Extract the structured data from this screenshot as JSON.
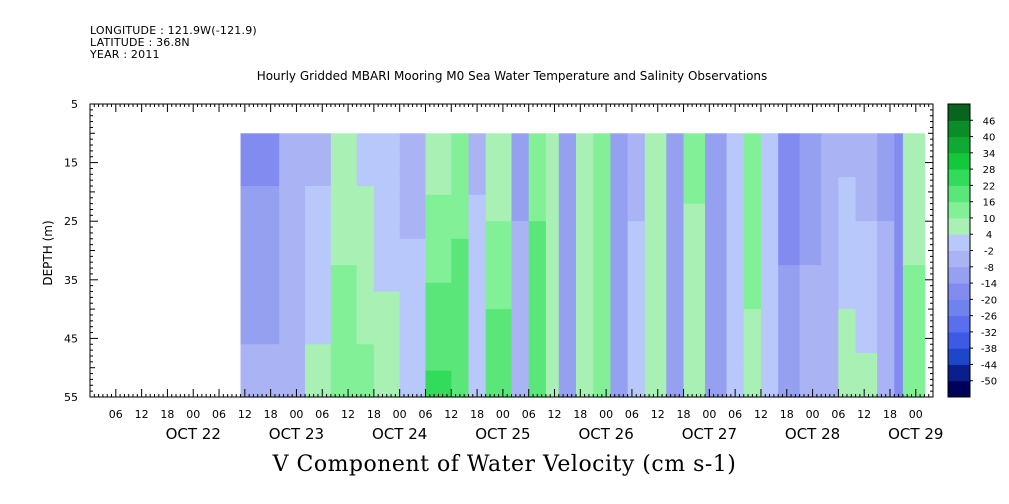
{
  "header": {
    "longitude": "LONGITUDE : 121.9W(-121.9)",
    "latitude": "LATITUDE : 36.8N",
    "year": "YEAR : 2011"
  },
  "chart_data": {
    "type": "heatmap",
    "title": "Hourly Gridded MBARI Mooring M0 Sea Water Temperature and Salinity Observations",
    "xlabel": "V Component of Water Velocity (cm s-1)",
    "ylabel": "DEPTH (m)",
    "ylim": [
      5,
      55
    ],
    "y_inverted": true,
    "y_ticks": [
      5,
      15,
      25,
      35,
      45,
      55
    ],
    "data_depth_range": [
      10,
      55
    ],
    "xlim": [
      "2011-10-21T00:00",
      "2011-10-29T04:00"
    ],
    "data_time_range": [
      "2011-10-22T11:00",
      "2011-10-29T02:00"
    ],
    "x_hour_ticks": [
      "06",
      "12",
      "18",
      "00",
      "06",
      "12",
      "18",
      "00",
      "06",
      "12",
      "18",
      "00",
      "06",
      "12",
      "18",
      "00",
      "06",
      "12",
      "18",
      "00",
      "06",
      "12",
      "18",
      "00",
      "06",
      "12",
      "18",
      "00",
      "06",
      "12",
      "18",
      "00"
    ],
    "x_day_labels": [
      "OCT 22",
      "OCT 23",
      "OCT 24",
      "OCT 25",
      "OCT 26",
      "OCT 27",
      "OCT 28",
      "OCT 29"
    ],
    "colorbar": {
      "levels": [
        -50,
        -44,
        -38,
        -32,
        -26,
        -20,
        -14,
        -8,
        -2,
        4,
        10,
        16,
        22,
        28,
        34,
        40,
        46
      ],
      "colors": [
        "#00005a",
        "#0a1e8c",
        "#1e46c8",
        "#3c5ae6",
        "#5a6ef0",
        "#6e82f0",
        "#828cf0",
        "#96a0f0",
        "#aab4f5",
        "#b9c8fa",
        "#a8f0b4",
        "#82f096",
        "#5ae678",
        "#32dc5a",
        "#14c83c",
        "#10aa32",
        "#0a8c28",
        "#08641e"
      ]
    },
    "time_bands_cm_s": [
      {
        "start": "2011-10-22T11:00",
        "top": -16,
        "bottom": -6
      },
      {
        "start": "2011-10-22T20:00",
        "top": -8,
        "bottom": -2
      },
      {
        "start": "2011-10-23T02:00",
        "top": -4,
        "bottom": 6
      },
      {
        "start": "2011-10-23T08:00",
        "top": 6,
        "bottom": 14
      },
      {
        "start": "2011-10-23T14:00",
        "top": 2,
        "bottom": 12
      },
      {
        "start": "2011-10-23T18:00",
        "top": -2,
        "bottom": 8
      },
      {
        "start": "2011-10-24T00:00",
        "top": -6,
        "bottom": 4
      },
      {
        "start": "2011-10-24T06:00",
        "top": 6,
        "bottom": 24
      },
      {
        "start": "2011-10-24T12:00",
        "top": 12,
        "bottom": 22
      },
      {
        "start": "2011-10-24T16:00",
        "top": -4,
        "bottom": 4
      },
      {
        "start": "2011-10-24T20:00",
        "top": 4,
        "bottom": 22
      },
      {
        "start": "2011-10-25T02:00",
        "top": -10,
        "bottom": -4
      },
      {
        "start": "2011-10-25T06:00",
        "top": 14,
        "bottom": 20
      },
      {
        "start": "2011-10-25T10:00",
        "top": 4,
        "bottom": 10
      },
      {
        "start": "2011-10-25T13:00",
        "top": -12,
        "bottom": -10
      },
      {
        "start": "2011-10-25T17:00",
        "top": 8,
        "bottom": 6
      },
      {
        "start": "2011-10-25T21:00",
        "top": 12,
        "bottom": 16
      },
      {
        "start": "2011-10-26T01:00",
        "top": -14,
        "bottom": -8
      },
      {
        "start": "2011-10-26T05:00",
        "top": -4,
        "bottom": 2
      },
      {
        "start": "2011-10-26T09:00",
        "top": 10,
        "bottom": 6
      },
      {
        "start": "2011-10-26T14:00",
        "top": -8,
        "bottom": -10
      },
      {
        "start": "2011-10-26T18:00",
        "top": 12,
        "bottom": 4
      },
      {
        "start": "2011-10-26T23:00",
        "top": -8,
        "bottom": -10
      },
      {
        "start": "2011-10-27T04:00",
        "top": -2,
        "bottom": 2
      },
      {
        "start": "2011-10-27T08:00",
        "top": 14,
        "bottom": 8
      },
      {
        "start": "2011-10-27T12:00",
        "top": 4,
        "bottom": 2
      },
      {
        "start": "2011-10-27T16:00",
        "top": -16,
        "bottom": -12
      },
      {
        "start": "2011-10-27T21:00",
        "top": -10,
        "bottom": -6
      },
      {
        "start": "2011-10-28T02:00",
        "top": -6,
        "bottom": -2
      },
      {
        "start": "2011-10-28T06:00",
        "top": -4,
        "bottom": 8
      },
      {
        "start": "2011-10-28T10:00",
        "top": -6,
        "bottom": 6
      },
      {
        "start": "2011-10-28T15:00",
        "top": -10,
        "bottom": -4
      },
      {
        "start": "2011-10-28T19:00",
        "top": -16,
        "bottom": -20
      },
      {
        "start": "2011-10-28T21:00",
        "top": 6,
        "bottom": 14
      }
    ]
  }
}
